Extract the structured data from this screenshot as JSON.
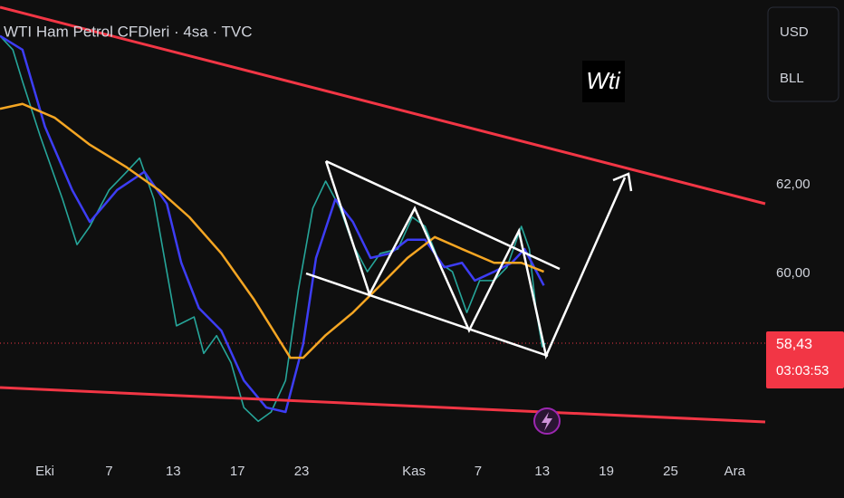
{
  "chart_data": {
    "type": "line",
    "title": "WTI Ham Petrol CFDleri · 4sa · TVC",
    "annotation": "Wti",
    "currency_buttons": [
      "USD",
      "BLL"
    ],
    "last_price": {
      "value": 58.43,
      "label": "58,43"
    },
    "countdown": "03:03:53",
    "xlim": [
      -2.8,
      44.9
    ],
    "xticks": [
      {
        "value": 0,
        "label": "Eki"
      },
      {
        "value": 4,
        "label": "7"
      },
      {
        "value": 8,
        "label": "13"
      },
      {
        "value": 12,
        "label": "17"
      },
      {
        "value": 16,
        "label": "23"
      },
      {
        "value": 23,
        "label": "Kas"
      },
      {
        "value": 27,
        "label": "7"
      },
      {
        "value": 31,
        "label": "13"
      },
      {
        "value": 35,
        "label": "19"
      },
      {
        "value": 39,
        "label": "25"
      },
      {
        "value": 43,
        "label": "Ara"
      }
    ],
    "ylim": [
      55.86,
      66.16
    ],
    "yticks": [
      {
        "value": 60,
        "label": "60,00"
      },
      {
        "value": 62,
        "label": "62,00"
      }
    ],
    "grid": false,
    "series": [
      {
        "color": "#26a69a",
        "width": 1.6,
        "x": [
          -2.8,
          -2.0,
          -1.4,
          -0.3,
          1.1,
          2.0,
          2.8,
          4.0,
          5.1,
          5.9,
          6.8,
          7.6,
          8.2,
          9.3,
          9.9,
          10.7,
          11.6,
          12.4,
          13.3,
          14.1,
          15.0,
          15.8,
          16.7,
          17.5,
          18.4,
          19.2,
          20.1,
          20.9,
          22.0,
          22.9,
          23.7,
          24.6,
          25.4,
          26.3,
          27.1,
          28.0,
          28.8,
          29.7,
          30.2,
          30.6,
          31.0,
          31.2
        ],
        "values": [
          65.35,
          65.04,
          64.33,
          63.1,
          61.67,
          60.65,
          61.06,
          61.88,
          62.29,
          62.6,
          61.67,
          60.04,
          58.82,
          59.02,
          58.2,
          58.6,
          57.99,
          56.98,
          56.67,
          56.88,
          57.59,
          59.63,
          61.47,
          62.08,
          61.47,
          60.65,
          60.04,
          60.45,
          60.55,
          61.27,
          61.06,
          60.24,
          60.04,
          59.12,
          59.84,
          59.84,
          60.14,
          61.06,
          60.55,
          59.22,
          58.35,
          58.43
        ]
      },
      {
        "color": "#3d3df5",
        "width": 2.5,
        "x": [
          -2.8,
          -1.4,
          0.0,
          1.7,
          2.8,
          4.5,
          6.2,
          7.6,
          8.5,
          9.6,
          11.0,
          12.4,
          13.8,
          15.0,
          16.1,
          16.9,
          18.1,
          19.2,
          20.3,
          21.5,
          22.6,
          23.7,
          24.9,
          26.0,
          26.8,
          28.0,
          29.1,
          29.9,
          31.1
        ],
        "values": [
          65.35,
          65.04,
          63.31,
          61.88,
          61.16,
          61.88,
          62.29,
          61.57,
          60.24,
          59.22,
          58.71,
          57.59,
          56.98,
          56.88,
          58.41,
          60.35,
          61.67,
          61.16,
          60.35,
          60.45,
          60.76,
          60.76,
          60.14,
          60.24,
          59.84,
          60.04,
          60.24,
          60.55,
          59.73
        ]
      },
      {
        "color": "#f5a623",
        "width": 2.5,
        "x": [
          -2.8,
          -1.4,
          0.6,
          2.8,
          5.1,
          7.1,
          9.0,
          11.0,
          13.0,
          15.3,
          16.1,
          17.5,
          19.2,
          20.9,
          22.6,
          24.3,
          26.0,
          28.0,
          29.7,
          31.1
        ],
        "values": [
          63.71,
          63.82,
          63.51,
          62.9,
          62.39,
          61.88,
          61.27,
          60.45,
          59.43,
          58.1,
          58.1,
          58.61,
          59.12,
          59.73,
          60.35,
          60.82,
          60.55,
          60.24,
          60.24,
          60.04
        ]
      }
    ]
  }
}
